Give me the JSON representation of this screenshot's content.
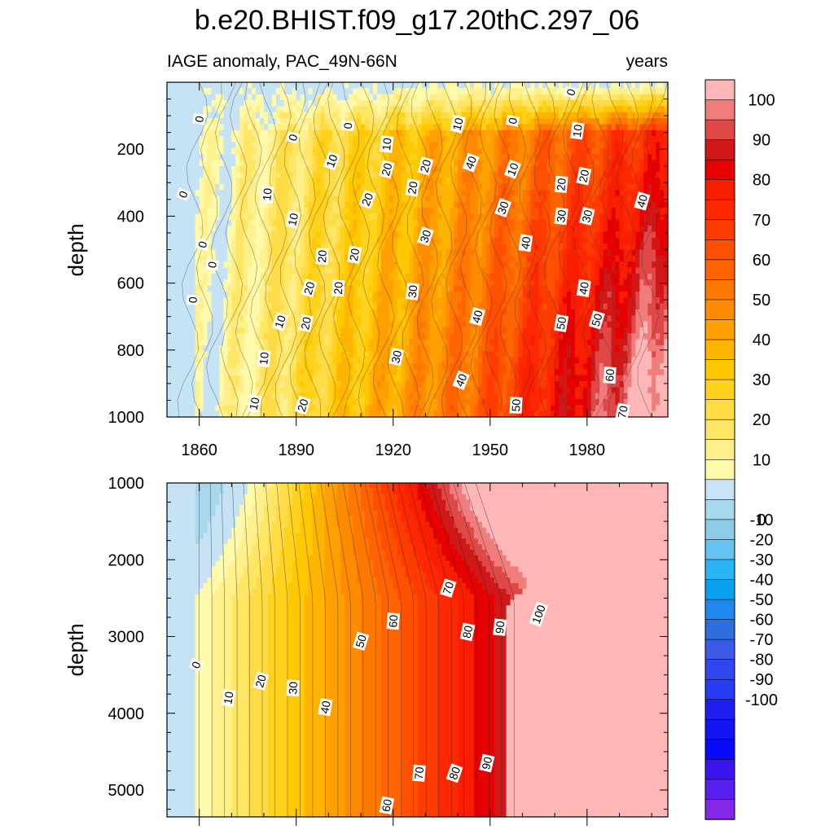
{
  "figure": {
    "title": "b.e20.BHIST.f09_g17.20thC.297_06",
    "subtitle_left": "IAGE anomaly, PAC_49N-66N",
    "subtitle_right": "years"
  },
  "chart_data": [
    {
      "type": "contour",
      "panel": "upper",
      "ylabel": "depth",
      "xlabel": "",
      "xlim": [
        1850,
        2005
      ],
      "ylim": [
        0,
        1000
      ],
      "y_inverted": true,
      "x_ticks": [
        1860,
        1890,
        1920,
        1950,
        1980
      ],
      "y_ticks": [
        200,
        400,
        600,
        800,
        1000
      ],
      "contour_labels": [
        {
          "x": 1855,
          "y": 335,
          "v": "0"
        },
        {
          "x": 1860,
          "y": 110,
          "v": "0"
        },
        {
          "x": 1861,
          "y": 485,
          "v": "0"
        },
        {
          "x": 1858,
          "y": 650,
          "v": "0"
        },
        {
          "x": 1864,
          "y": 545,
          "v": "0"
        },
        {
          "x": 1889,
          "y": 165,
          "v": "0"
        },
        {
          "x": 1906,
          "y": 130,
          "v": "0"
        },
        {
          "x": 1957,
          "y": 115,
          "v": "0"
        },
        {
          "x": 1975,
          "y": 30,
          "v": "0"
        },
        {
          "x": 1881,
          "y": 335,
          "v": "10"
        },
        {
          "x": 1889,
          "y": 410,
          "v": "10"
        },
        {
          "x": 1885,
          "y": 715,
          "v": "10"
        },
        {
          "x": 1880,
          "y": 825,
          "v": "10"
        },
        {
          "x": 1877,
          "y": 960,
          "v": "10"
        },
        {
          "x": 1901,
          "y": 235,
          "v": "10"
        },
        {
          "x": 1918,
          "y": 185,
          "v": "10"
        },
        {
          "x": 1940,
          "y": 125,
          "v": "10"
        },
        {
          "x": 1957,
          "y": 260,
          "v": "10"
        },
        {
          "x": 1977,
          "y": 145,
          "v": "10"
        },
        {
          "x": 1918,
          "y": 260,
          "v": "20"
        },
        {
          "x": 1912,
          "y": 350,
          "v": "20"
        },
        {
          "x": 1926,
          "y": 315,
          "v": "20"
        },
        {
          "x": 1930,
          "y": 250,
          "v": "20"
        },
        {
          "x": 1898,
          "y": 520,
          "v": "20"
        },
        {
          "x": 1908,
          "y": 515,
          "v": "20"
        },
        {
          "x": 1894,
          "y": 615,
          "v": "20"
        },
        {
          "x": 1903,
          "y": 615,
          "v": "20"
        },
        {
          "x": 1893,
          "y": 720,
          "v": "20"
        },
        {
          "x": 1892,
          "y": 965,
          "v": "20"
        },
        {
          "x": 1972,
          "y": 305,
          "v": "20"
        },
        {
          "x": 1979,
          "y": 280,
          "v": "20"
        },
        {
          "x": 1930,
          "y": 460,
          "v": "30"
        },
        {
          "x": 1926,
          "y": 625,
          "v": "30"
        },
        {
          "x": 1921,
          "y": 820,
          "v": "30"
        },
        {
          "x": 1954,
          "y": 375,
          "v": "30"
        },
        {
          "x": 1972,
          "y": 400,
          "v": "30"
        },
        {
          "x": 1980,
          "y": 400,
          "v": "30"
        },
        {
          "x": 1944,
          "y": 240,
          "v": "40"
        },
        {
          "x": 1961,
          "y": 480,
          "v": "40"
        },
        {
          "x": 1946,
          "y": 700,
          "v": "40"
        },
        {
          "x": 1941,
          "y": 890,
          "v": "40"
        },
        {
          "x": 1979,
          "y": 615,
          "v": "40"
        },
        {
          "x": 1997,
          "y": 355,
          "v": "40"
        },
        {
          "x": 1958,
          "y": 965,
          "v": "50"
        },
        {
          "x": 1972,
          "y": 720,
          "v": "50"
        },
        {
          "x": 1983,
          "y": 710,
          "v": "50"
        },
        {
          "x": 1987,
          "y": 875,
          "v": "60"
        },
        {
          "x": 1991,
          "y": 985,
          "v": "70"
        }
      ]
    },
    {
      "type": "contour",
      "panel": "lower",
      "ylabel": "depth",
      "xlabel": "",
      "xlim": [
        1850,
        2005
      ],
      "ylim": [
        1000,
        5350
      ],
      "y_inverted": true,
      "y_ticks": [
        1000,
        2000,
        3000,
        4000,
        5000
      ],
      "contour_labels": [
        {
          "x": 1859,
          "y": 3370,
          "v": "0"
        },
        {
          "x": 1869,
          "y": 3800,
          "v": "10"
        },
        {
          "x": 1879,
          "y": 3580,
          "v": "20"
        },
        {
          "x": 1889,
          "y": 3670,
          "v": "30"
        },
        {
          "x": 1899,
          "y": 3920,
          "v": "40"
        },
        {
          "x": 1910,
          "y": 3060,
          "v": "50"
        },
        {
          "x": 1920,
          "y": 2800,
          "v": "60"
        },
        {
          "x": 1918,
          "y": 5200,
          "v": "60"
        },
        {
          "x": 1937,
          "y": 2370,
          "v": "70"
        },
        {
          "x": 1928,
          "y": 4780,
          "v": "70"
        },
        {
          "x": 1943,
          "y": 2940,
          "v": "80"
        },
        {
          "x": 1939,
          "y": 4780,
          "v": "80"
        },
        {
          "x": 1953,
          "y": 2880,
          "v": "90"
        },
        {
          "x": 1949,
          "y": 4650,
          "v": "90"
        },
        {
          "x": 1965,
          "y": 2710,
          "v": "100"
        }
      ]
    },
    {
      "type": "colorbar",
      "levels": [
        100,
        90,
        80,
        70,
        60,
        50,
        40,
        30,
        20,
        10,
        0,
        -10,
        -20,
        -30,
        -40,
        -50,
        -60,
        -70,
        -80,
        -90,
        -100
      ],
      "colors": [
        "#ffb6b6",
        "#f07c7c",
        "#e04848",
        "#d01818",
        "#e60000",
        "#fa1e00",
        "#ff2800",
        "#ff3c00",
        "#ff5000",
        "#ff6400",
        "#ff7800",
        "#ff8c00",
        "#ffa000",
        "#ffb400",
        "#ffc800",
        "#ffd21e",
        "#ffdc46",
        "#ffe664",
        "#fff08c",
        "#fffaaa",
        "#c8e4f6",
        "#a8d8ee",
        "#8ccce8",
        "#64c3f0",
        "#28b4f5",
        "#0aa0f0",
        "#1e87f0",
        "#2d6edc",
        "#3c5ae6",
        "#3246ee",
        "#283cf5",
        "#1e1ef0",
        "#1414f5",
        "#0a0afa",
        "#3c14f0",
        "#5a1ef0",
        "#8228e6"
      ]
    }
  ]
}
